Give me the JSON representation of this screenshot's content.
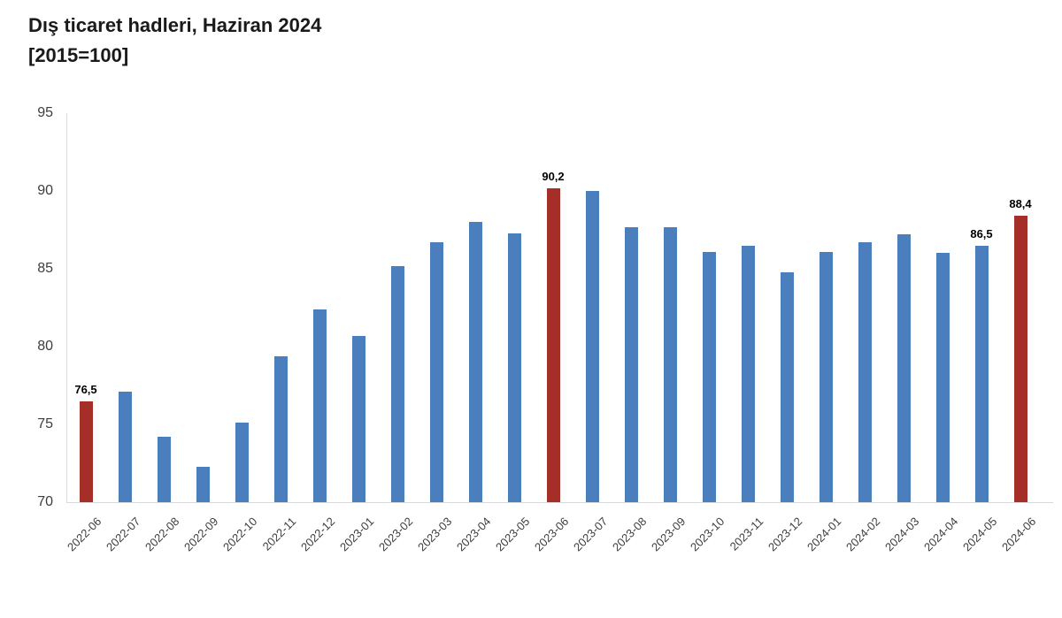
{
  "title": {
    "line1": "Dış ticaret hadleri, Haziran 2024",
    "line2": "[2015=100]"
  },
  "chart_data": {
    "type": "bar",
    "title": "Dış ticaret hadleri, Haziran 2024",
    "subtitle": "[2015=100]",
    "categories": [
      "2022-06",
      "2022-07",
      "2022-08",
      "2022-09",
      "2022-10",
      "2022-11",
      "2022-12",
      "2023-01",
      "2023-02",
      "2023-03",
      "2023-04",
      "2023-05",
      "2023-06",
      "2023-07",
      "2023-08",
      "2023-09",
      "2023-10",
      "2023-11",
      "2023-12",
      "2024-01",
      "2024-02",
      "2024-03",
      "2024-04",
      "2024-05",
      "2024-06"
    ],
    "values": [
      76.5,
      77.1,
      74.2,
      72.3,
      75.1,
      79.4,
      82.4,
      80.7,
      85.2,
      86.7,
      88.0,
      87.3,
      90.2,
      90.0,
      87.7,
      87.7,
      86.1,
      86.5,
      84.8,
      86.1,
      86.7,
      87.2,
      86.0,
      86.5,
      88.4
    ],
    "highlight_indices": [
      0,
      12,
      24
    ],
    "data_labels": [
      {
        "index": 0,
        "text": "76,5"
      },
      {
        "index": 12,
        "text": "90,2"
      },
      {
        "index": 23,
        "text": "86,5"
      },
      {
        "index": 24,
        "text": "88,4"
      }
    ],
    "xlabel": "",
    "ylabel": "",
    "ylim": [
      70,
      95
    ],
    "yticks": [
      "70",
      "75",
      "80",
      "85",
      "90",
      "95"
    ],
    "grid": false,
    "legend": false,
    "colors": {
      "bar": "#4b7ebc",
      "highlight": "#a52f28",
      "axis_line": "#d9d9d9",
      "tick_text": "#3d3d3d",
      "data_label_text": "#000000",
      "title_text": "#1a1a1a"
    }
  }
}
